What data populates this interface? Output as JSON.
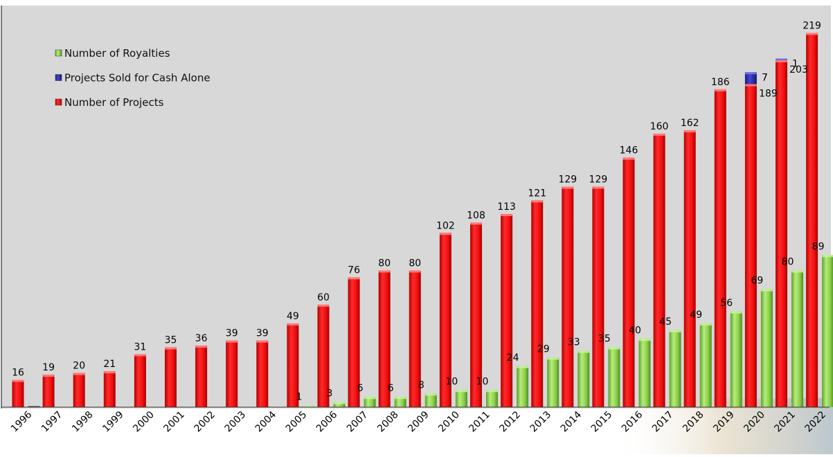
{
  "chart_data": {
    "type": "bar",
    "title": "",
    "xlabel": "",
    "ylabel": "",
    "ylim": [
      0,
      235
    ],
    "grid": false,
    "legend_position": "top-left",
    "categories": [
      "1996",
      "1997",
      "1998",
      "1999",
      "2000",
      "2001",
      "2002",
      "2003",
      "2004",
      "2005",
      "2006",
      "2007",
      "2008",
      "2009",
      "2010",
      "2011",
      "2012",
      "2013",
      "2014",
      "2015",
      "2016",
      "2017",
      "2018",
      "2019",
      "2020",
      "2021",
      "2022"
    ],
    "series": [
      {
        "name": "Number of Royalties",
        "color": "#8ccf4a",
        "values": [
          0,
          0,
          0,
          0,
          0,
          0,
          0,
          0,
          0,
          1,
          3,
          6,
          6,
          8,
          10,
          10,
          24,
          29,
          33,
          35,
          40,
          45,
          49,
          56,
          69,
          80,
          89
        ],
        "labels": [
          "",
          "",
          "",
          "",
          "",
          "",
          "",
          "",
          "",
          "1",
          "3",
          "6",
          "6",
          "8",
          "10",
          "10",
          "24",
          "29",
          "33",
          "35",
          "40",
          "45",
          "49",
          "56",
          "69",
          "80",
          "89"
        ]
      },
      {
        "name": "Projects Sold for Cash Alone",
        "color": "#2b2ea8",
        "values": [
          0,
          0,
          0,
          0,
          0,
          0,
          0,
          0,
          0,
          0,
          0,
          0,
          0,
          0,
          0,
          0,
          0,
          0,
          0,
          0,
          0,
          0,
          0,
          0,
          7,
          1,
          0
        ],
        "labels": [
          "",
          "",
          "",
          "",
          "",
          "",
          "",
          "",
          "",
          "",
          "",
          "",
          "",
          "",
          "",
          "",
          "",
          "",
          "",
          "",
          "",
          "",
          "",
          "",
          "7",
          "1",
          ""
        ]
      },
      {
        "name": "Number of Projects",
        "color": "#ee1111",
        "values": [
          16,
          19,
          20,
          21,
          31,
          35,
          36,
          39,
          39,
          49,
          60,
          76,
          80,
          80,
          102,
          108,
          113,
          121,
          129,
          129,
          146,
          160,
          162,
          186,
          189,
          203,
          219
        ],
        "labels": [
          "16",
          "19",
          "20",
          "21",
          "31",
          "35",
          "36",
          "39",
          "39",
          "49",
          "60",
          "76",
          "80",
          "80",
          "102",
          "108",
          "113",
          "121",
          "129",
          "129",
          "146",
          "160",
          "162",
          "186",
          "189",
          "203",
          "219"
        ]
      }
    ]
  }
}
